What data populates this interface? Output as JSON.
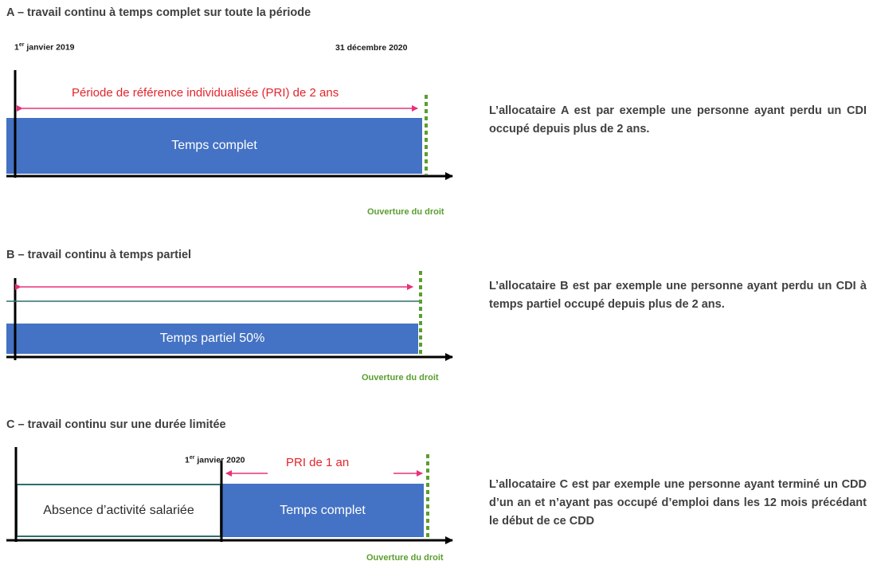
{
  "section_a": {
    "title": "A – travail continu à temps complet sur toute la période",
    "start_date_num": "1",
    "start_date_sup": "er",
    "start_date_rest": " janvier 2019",
    "end_date": "31 décembre 2020",
    "pri_label": "Période de référence individualisée (PRI) de 2 ans",
    "bar_label": "Temps complet",
    "opening_label": "Ouverture du droit",
    "description": "L’allocataire A est par exemple une personne ayant perdu un CDI occupé depuis plus de 2 ans."
  },
  "section_b": {
    "title": "B – travail continu à temps partiel",
    "bar_label": "Temps partiel 50%",
    "opening_label": "Ouverture du droit",
    "description": "L’allocataire B est par exemple une personne ayant perdu un CDI à temps partiel occupé depuis plus de 2 ans."
  },
  "section_c": {
    "title": "C – travail continu sur une durée limitée",
    "date_num": "1",
    "date_sup": "er",
    "date_rest": " janvier 2020",
    "pri_label": "PRI de 1 an",
    "absence_label": "Absence d’activité salariée",
    "bar_label": "Temps complet",
    "opening_label": "Ouverture du droit",
    "description": "L’allocataire C est par exemple une personne ayant terminé un CDD d’un an et n’ayant pas occupé d’emploi dans les 12 mois précédant le début de ce CDD"
  },
  "colors": {
    "bar_blue": "#4472c4",
    "pri_red": "#e3242b",
    "arrow_pink": "#e8307a",
    "opening_green": "#5a9e2e",
    "line_teal": "#2e6e6e"
  }
}
